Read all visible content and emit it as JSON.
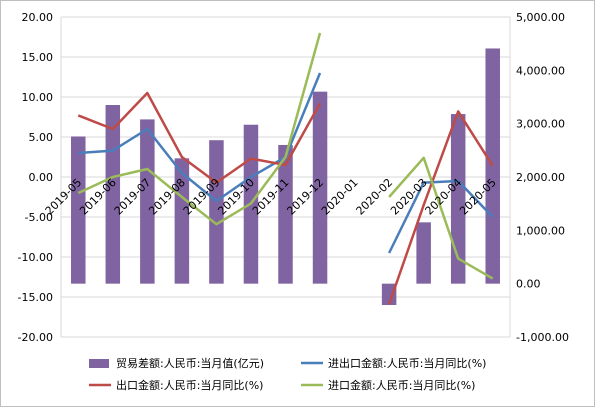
{
  "chart_data": {
    "type": "bar",
    "categories": [
      "2019-05",
      "2019-06",
      "2019-07",
      "2019-08",
      "2019-09",
      "2019-10",
      "2019-11",
      "2019-12",
      "2020-01",
      "2020-02",
      "2020-03",
      "2020-04",
      "2020-05"
    ],
    "y_left": {
      "ylim": [
        -20,
        20
      ],
      "ticks": [
        "20.00",
        "15.00",
        "10.00",
        "5.00",
        "0.00",
        "-5.00",
        "-10.00",
        "-15.00",
        "-20.00"
      ]
    },
    "y_right": {
      "ylim": [
        -1000,
        5000
      ],
      "ticks": [
        "5,000.00",
        "4,000.00",
        "3,000.00",
        "2,000.00",
        "1,000.00",
        "0.00",
        "-1,000.00"
      ]
    },
    "grid": true,
    "legend_position": "bottom",
    "series": [
      {
        "name": "贸易差额:人民币:当月值(亿元)",
        "type": "bar",
        "axis": "right",
        "color": "#8064a2",
        "values": [
          2760,
          3350,
          3080,
          2350,
          2690,
          2980,
          2600,
          3600,
          null,
          -400,
          1150,
          3180,
          4410
        ]
      },
      {
        "name": "进出口金额:人民币:当月同比(%)",
        "type": "line",
        "axis": "left",
        "color": "#4a7ebb",
        "values": [
          3.0,
          3.3,
          6.0,
          0.5,
          -3.0,
          0.0,
          2.5,
          13.0,
          null,
          -9.5,
          -0.7,
          -0.5,
          -5.0
        ]
      },
      {
        "name": "出口金额:人民币:当月同比(%)",
        "type": "line",
        "axis": "left",
        "color": "#be4b48",
        "values": [
          7.7,
          6.0,
          10.5,
          2.5,
          -0.7,
          2.3,
          1.5,
          9.2,
          null,
          -15.9,
          -3.5,
          8.2,
          1.4
        ]
      },
      {
        "name": "进口金额:人民币:当月同比(%)",
        "type": "line",
        "axis": "left",
        "color": "#9bbb59",
        "values": [
          -2.0,
          0.0,
          1.0,
          -2.5,
          -5.9,
          -3.3,
          2.5,
          18.0,
          null,
          -2.5,
          2.4,
          -10.2,
          -12.7
        ]
      }
    ]
  }
}
